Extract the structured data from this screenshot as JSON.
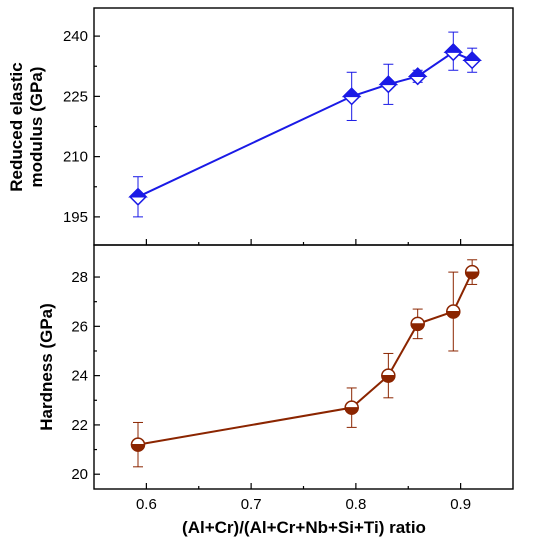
{
  "chart_data": [
    {
      "type": "scatter",
      "panel": "top",
      "title": "",
      "xlabel": "(Al+Cr)/(Al+Cr+Nb+Si+Ti) ratio",
      "ylabel_lines": [
        "Reduced elastic",
        "modulus (GPa)"
      ],
      "xlim": [
        0.55,
        0.95
      ],
      "ylim": [
        188,
        247
      ],
      "yticks": [
        195,
        210,
        225,
        240
      ],
      "xticks": [
        0.6,
        0.7,
        0.8,
        0.9
      ],
      "color": "#1a1ae6",
      "marker": "half-filled-diamond",
      "line": "straight",
      "grid": false,
      "series": [
        {
          "x": [
            0.592,
            0.796,
            0.831,
            0.859,
            0.893,
            0.911
          ],
          "y": [
            200.0,
            225.0,
            228.0,
            230.0,
            236.0,
            234.0
          ],
          "err_plus": [
            5.0,
            6.0,
            5.0,
            1.5,
            5.0,
            3.0
          ],
          "err_minus": [
            5.0,
            6.0,
            5.0,
            1.5,
            4.5,
            3.0
          ]
        }
      ]
    },
    {
      "type": "scatter",
      "panel": "bottom",
      "title": "",
      "xlabel": "(Al+Cr)/(Al+Cr+Nb+Si+Ti) ratio",
      "ylabel_lines": [
        "Hardness (GPa)"
      ],
      "xlim": [
        0.55,
        0.95
      ],
      "ylim": [
        19.4,
        29.3
      ],
      "yticks": [
        20,
        22,
        24,
        26,
        28
      ],
      "xticks": [
        0.6,
        0.7,
        0.8,
        0.9
      ],
      "xticklabels": [
        "0.6",
        "0.7",
        "0.8",
        "0.9"
      ],
      "color": "#8b2500",
      "marker": "half-filled-circle",
      "line": "straight",
      "grid": false,
      "series": [
        {
          "x": [
            0.592,
            0.796,
            0.831,
            0.859,
            0.893,
            0.911
          ],
          "y": [
            21.2,
            22.7,
            24.0,
            26.1,
            26.6,
            28.2
          ],
          "err_plus": [
            0.9,
            0.8,
            0.9,
            0.6,
            1.6,
            0.5
          ],
          "err_minus": [
            0.9,
            0.8,
            0.9,
            0.6,
            1.6,
            0.5
          ]
        }
      ]
    }
  ]
}
